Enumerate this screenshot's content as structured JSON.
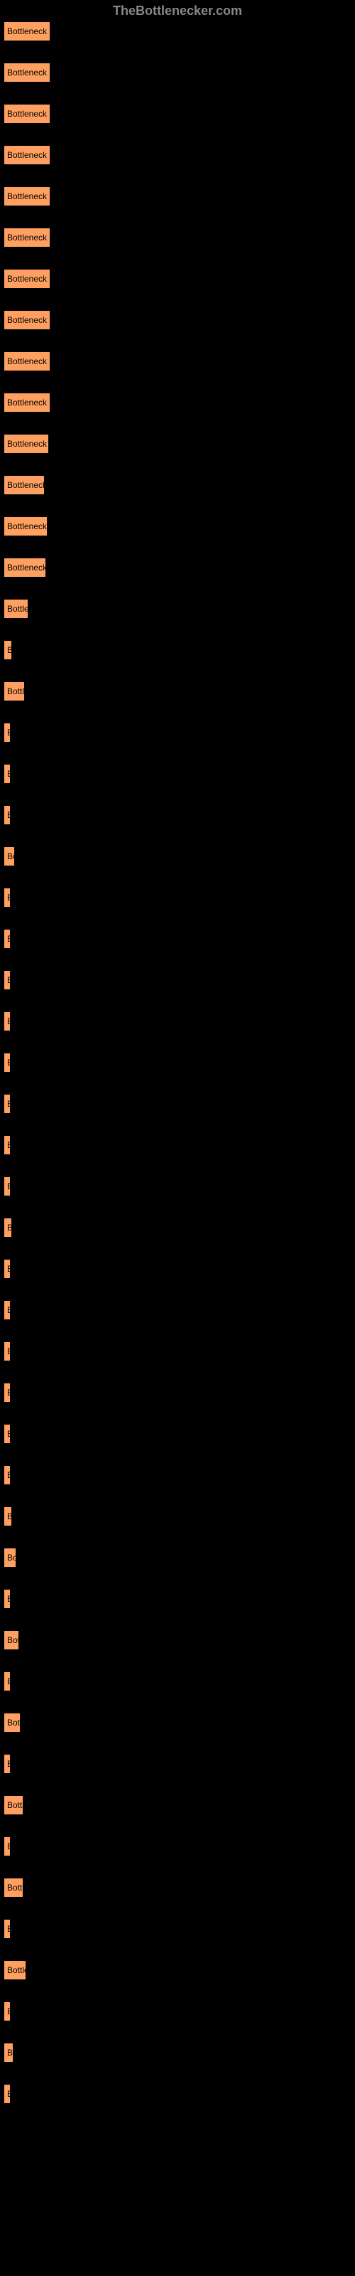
{
  "header": "TheBottlenecker.com",
  "bar_color": "#ffa060",
  "bar_label": "Bottleneck res",
  "bars": [
    {
      "width": 66
    },
    {
      "width": 66
    },
    {
      "width": 66
    },
    {
      "width": 66
    },
    {
      "width": 66
    },
    {
      "width": 66
    },
    {
      "width": 66
    },
    {
      "width": 66
    },
    {
      "width": 66
    },
    {
      "width": 66
    },
    {
      "width": 64
    },
    {
      "width": 58
    },
    {
      "width": 62
    },
    {
      "width": 60
    },
    {
      "width": 35
    },
    {
      "width": 12
    },
    {
      "width": 30
    },
    {
      "width": 1
    },
    {
      "width": 3
    },
    {
      "width": 1
    },
    {
      "width": 16
    },
    {
      "width": 1
    },
    {
      "width": 1
    },
    {
      "width": 1
    },
    {
      "width": 1
    },
    {
      "width": 1
    },
    {
      "width": 1
    },
    {
      "width": 1
    },
    {
      "width": 1
    },
    {
      "width": 12
    },
    {
      "width": 1
    },
    {
      "width": 1
    },
    {
      "width": 1
    },
    {
      "width": 1
    },
    {
      "width": 1
    },
    {
      "width": 1
    },
    {
      "width": 12
    },
    {
      "width": 18
    },
    {
      "width": 1
    },
    {
      "width": 22
    },
    {
      "width": 1
    },
    {
      "width": 24
    },
    {
      "width": 1
    },
    {
      "width": 28
    },
    {
      "width": 1
    },
    {
      "width": 28
    },
    {
      "width": 1
    },
    {
      "width": 32
    },
    {
      "width": 1
    },
    {
      "width": 14
    },
    {
      "width": 1
    }
  ]
}
